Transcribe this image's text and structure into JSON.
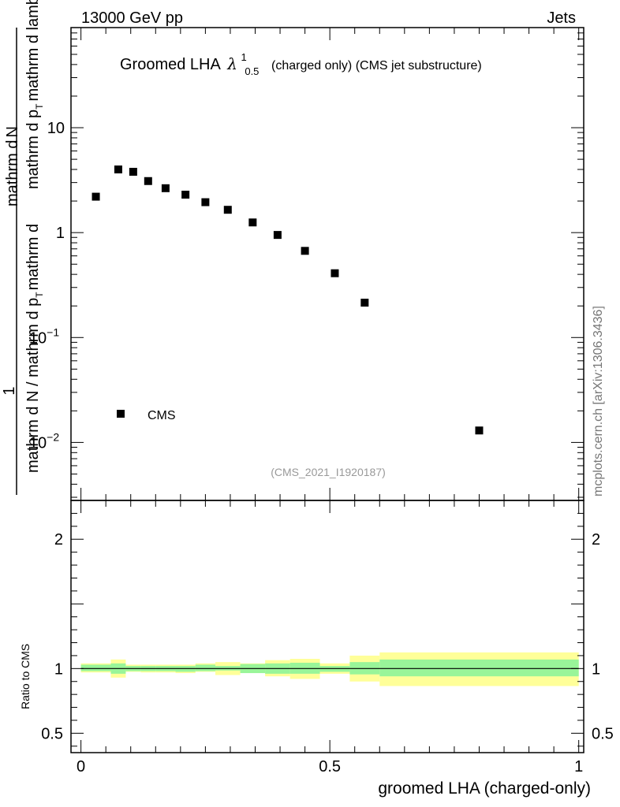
{
  "header": {
    "left": "13000 GeV pp",
    "right": "Jets"
  },
  "title": {
    "main": "Groomed LHA",
    "lambda": "λ",
    "sup": "1",
    "sub": "0.5",
    "tail": "(charged only) (CMS jet substructure)"
  },
  "ylabel_top": "1 / mathrm d N / mathrm d p_T / mathrm d lambda",
  "ylabel_top_lines": {
    "one": "1",
    "line1a": "mathrm d N / mathrm d p",
    "line1b": "mathrm d",
    "line1c": "N",
    "line1d": "mathrm d p",
    "line1e": "mathrm d lambda",
    "sub_t": "T"
  },
  "ylabel_ratio": "Ratio to CMS",
  "xlabel": "groomed LHA (charged-only)",
  "side_note": "mcplots.cern.ch [arXiv:1306.3436]",
  "analysis_tag": "(CMS_2021_I1920187)",
  "legend": {
    "label": "CMS"
  },
  "yticks_top": [
    {
      "value": 10,
      "label": "10"
    },
    {
      "value": 1,
      "label": "1"
    },
    {
      "value": 0.1,
      "label": "10",
      "exp": "−1"
    },
    {
      "value": 0.01,
      "label": "10",
      "exp": "−2"
    }
  ],
  "yticks_ratio": [
    {
      "value": 2,
      "label": "2"
    },
    {
      "value": 1,
      "label": "1"
    },
    {
      "value": 0.5,
      "label": "0.5"
    }
  ],
  "xticks": [
    {
      "value": 0,
      "label": "0"
    },
    {
      "value": 0.5,
      "label": "0.5"
    },
    {
      "value": 1,
      "label": "1"
    }
  ],
  "chart_data": {
    "type": "scatter",
    "title": "Groomed LHA λ^1_0.5 (charged only) (CMS jet substructure)",
    "xlabel": "groomed LHA (charged-only)",
    "ylabel": "1 / mathrm d N / mathrm d p_T / mathrm d lambda",
    "xlim": [
      -0.02,
      1.01
    ],
    "ylim": [
      0.0028,
      90
    ],
    "yscale": "log",
    "series": [
      {
        "name": "CMS",
        "x": [
          0.03,
          0.075,
          0.105,
          0.135,
          0.17,
          0.21,
          0.25,
          0.295,
          0.345,
          0.395,
          0.45,
          0.51,
          0.57,
          0.8
        ],
        "values": [
          2.2,
          4.0,
          3.8,
          3.1,
          2.65,
          2.3,
          1.95,
          1.65,
          1.25,
          0.95,
          0.67,
          0.41,
          0.215,
          0.013
        ]
      }
    ],
    "ratio": {
      "ylabel": "Ratio to CMS",
      "ylim": [
        0.35,
        2.3
      ],
      "edges": [
        0,
        0.06,
        0.09,
        0.12,
        0.15,
        0.19,
        0.23,
        0.27,
        0.32,
        0.37,
        0.42,
        0.48,
        0.54,
        0.6,
        1.0
      ],
      "inner_band": [
        [
          0.98,
          1.03
        ],
        [
          0.96,
          1.04
        ],
        [
          0.98,
          1.02
        ],
        [
          0.98,
          1.02
        ],
        [
          0.98,
          1.02
        ],
        [
          0.975,
          1.02
        ],
        [
          0.98,
          1.03
        ],
        [
          0.985,
          1.02
        ],
        [
          0.965,
          1.035
        ],
        [
          0.96,
          1.04
        ],
        [
          0.96,
          1.045
        ],
        [
          0.975,
          1.02
        ],
        [
          0.955,
          1.05
        ],
        [
          0.94,
          1.07
        ]
      ],
      "outer_band": [
        [
          0.97,
          1.04
        ],
        [
          0.93,
          1.07
        ],
        [
          0.975,
          1.03
        ],
        [
          0.97,
          1.03
        ],
        [
          0.97,
          1.03
        ],
        [
          0.965,
          1.03
        ],
        [
          0.975,
          1.04
        ],
        [
          0.95,
          1.05
        ],
        [
          0.97,
          1.04
        ],
        [
          0.94,
          1.065
        ],
        [
          0.92,
          1.075
        ],
        [
          0.96,
          1.04
        ],
        [
          0.9,
          1.1
        ],
        [
          0.865,
          1.125
        ]
      ],
      "reference": 1.0
    }
  }
}
